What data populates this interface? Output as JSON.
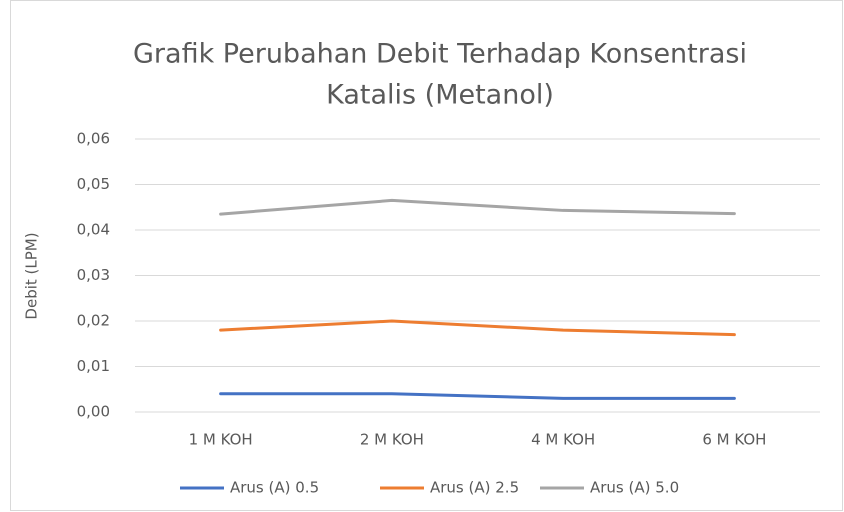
{
  "chart_data": {
    "type": "line",
    "title": [
      "Grafik Perubahan Debit Terhadap Konsentrasi",
      "Katalis (Metanol)"
    ],
    "y_label": "Debit (LPM)",
    "categories": [
      "1 M KOH",
      "2 M KOH",
      "4 M KOH",
      "6 M KOH"
    ],
    "series": [
      {
        "name": "Arus (A) 0.5",
        "color": "#4472c4",
        "values": [
          0.004,
          0.004,
          0.003,
          0.003
        ]
      },
      {
        "name": "Arus (A) 2.5",
        "color": "#ed7d31",
        "values": [
          0.018,
          0.02,
          0.018,
          0.017
        ]
      },
      {
        "name": "Arus (A) 5.0",
        "color": "#a5a5a5",
        "values": [
          0.0435,
          0.0465,
          0.0443,
          0.0436
        ]
      }
    ],
    "ylim": [
      0,
      0.06
    ],
    "yticks": [
      {
        "value": 0,
        "label": "0,00"
      },
      {
        "value": 0.01,
        "label": "0,01"
      },
      {
        "value": 0.02,
        "label": "0,02"
      },
      {
        "value": 0.03,
        "label": "0,03"
      },
      {
        "value": 0.04,
        "label": "0,04"
      },
      {
        "value": 0.05,
        "label": "0,05"
      },
      {
        "value": 0.06,
        "label": "0,06"
      }
    ],
    "grid": true,
    "legend": "bottom"
  }
}
